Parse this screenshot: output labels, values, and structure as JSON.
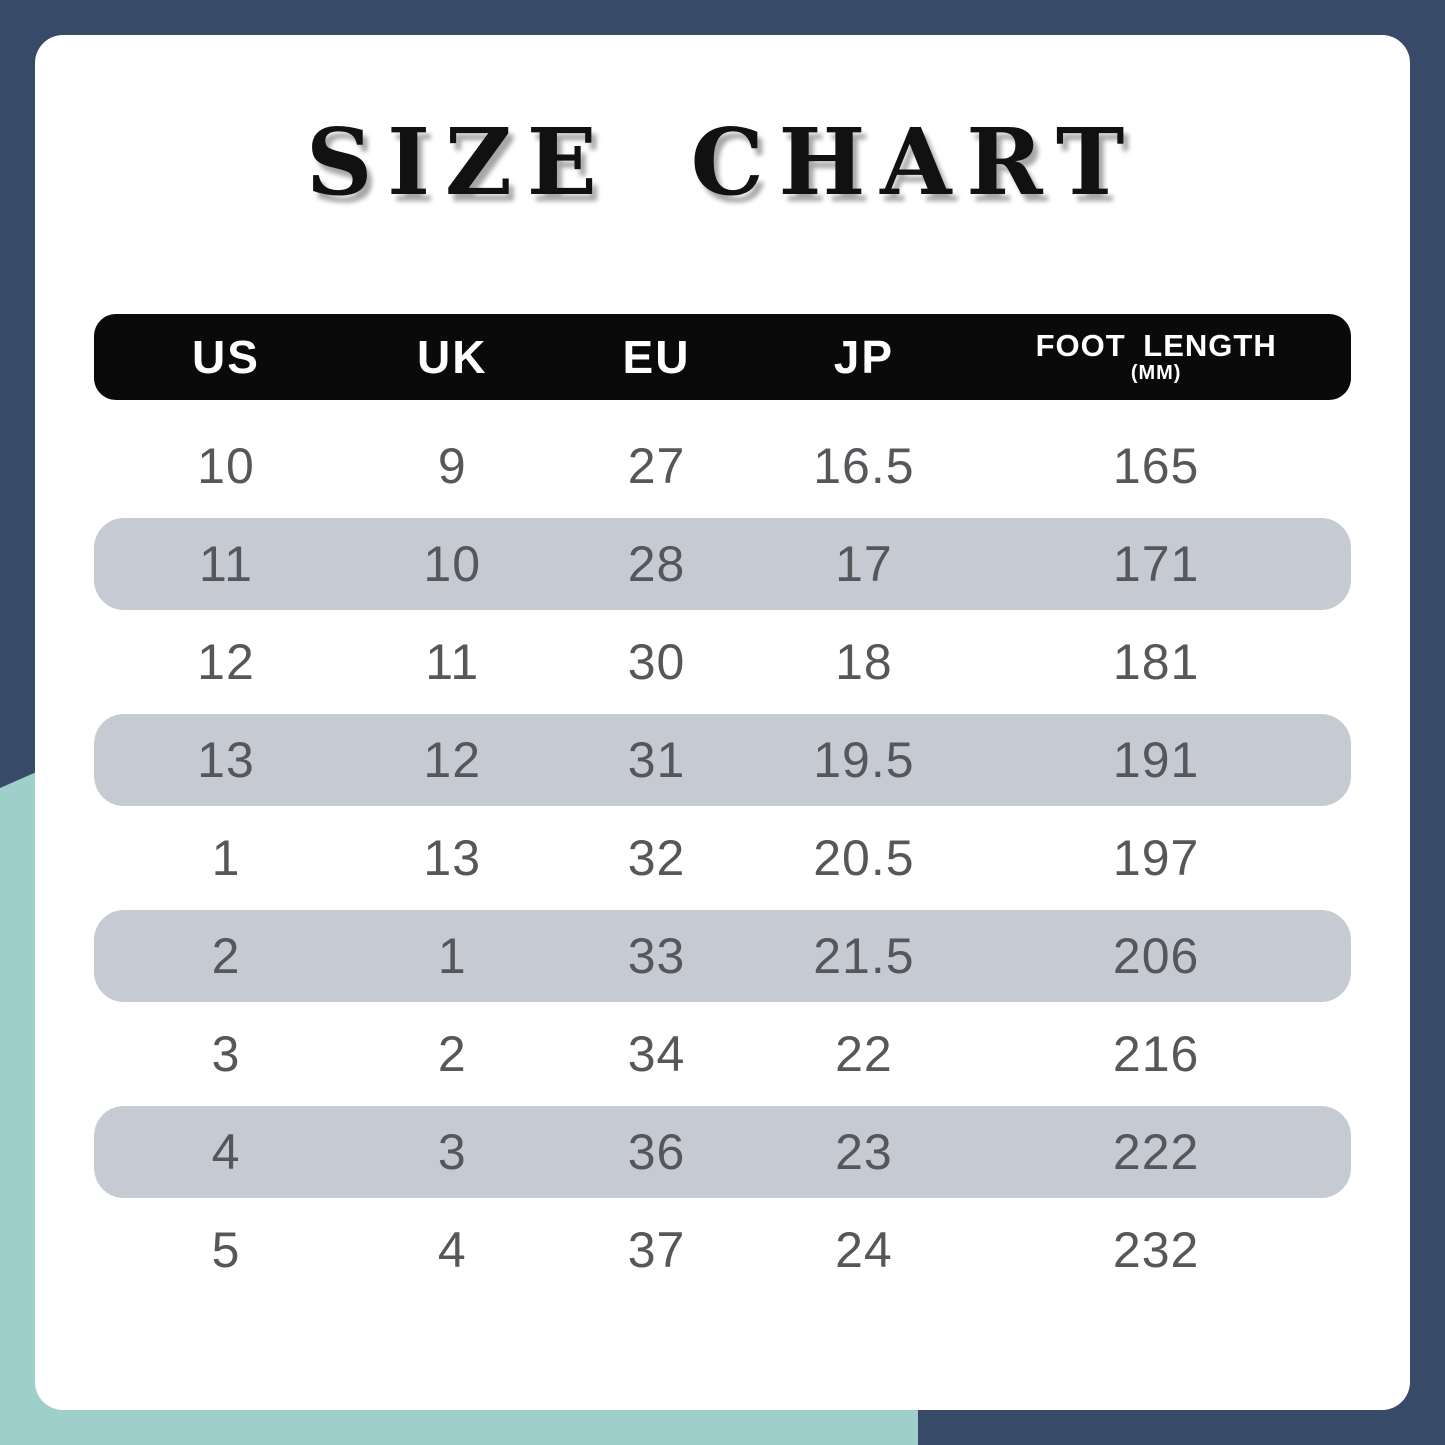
{
  "page": {
    "title": "SIZE CHART"
  },
  "table": {
    "headers": [
      "US",
      "UK",
      "EU",
      "JP"
    ],
    "foot_length": {
      "line1": "FOOT LENGTH",
      "line2": "(MM)"
    },
    "rows": [
      [
        "10",
        "9",
        "27",
        "16.5",
        "165"
      ],
      [
        "11",
        "10",
        "28",
        "17",
        "171"
      ],
      [
        "12",
        "11",
        "30",
        "18",
        "181"
      ],
      [
        "13",
        "12",
        "31",
        "19.5",
        "191"
      ],
      [
        "1",
        "13",
        "32",
        "20.5",
        "197"
      ],
      [
        "2",
        "1",
        "33",
        "21.5",
        "206"
      ],
      [
        "3",
        "2",
        "34",
        "22",
        "216"
      ],
      [
        "4",
        "3",
        "36",
        "23",
        "222"
      ],
      [
        "5",
        "4",
        "37",
        "24",
        "232"
      ]
    ]
  },
  "colors": {
    "background_navy": "#374B68",
    "background_teal": "#9ECFCB",
    "card_white": "#FFFFFF",
    "header_bar_black": "#0A0A0A",
    "header_text": "#FFFFFF",
    "row_alt_gray": "#C6CBD3",
    "row_text": "#55575A",
    "title_text": "#111111"
  },
  "chart_data": {
    "type": "table",
    "title": "SIZE CHART",
    "columns": [
      "US",
      "UK",
      "EU",
      "JP",
      "FOOT LENGTH (MM)"
    ],
    "rows": [
      [
        "10",
        "9",
        "27",
        "16.5",
        "165"
      ],
      [
        "11",
        "10",
        "28",
        "17",
        "171"
      ],
      [
        "12",
        "11",
        "30",
        "18",
        "181"
      ],
      [
        "13",
        "12",
        "31",
        "19.5",
        "191"
      ],
      [
        "1",
        "13",
        "32",
        "20.5",
        "197"
      ],
      [
        "2",
        "1",
        "33",
        "21.5",
        "206"
      ],
      [
        "3",
        "2",
        "34",
        "22",
        "216"
      ],
      [
        "4",
        "3",
        "36",
        "23",
        "222"
      ],
      [
        "5",
        "4",
        "37",
        "24",
        "232"
      ]
    ],
    "layout_hints": {
      "alternating_row_shading": [
        1,
        3,
        5,
        7
      ],
      "header_style": "black pill bar, white bold text",
      "row_shading_style": "rounded gray pills"
    }
  }
}
